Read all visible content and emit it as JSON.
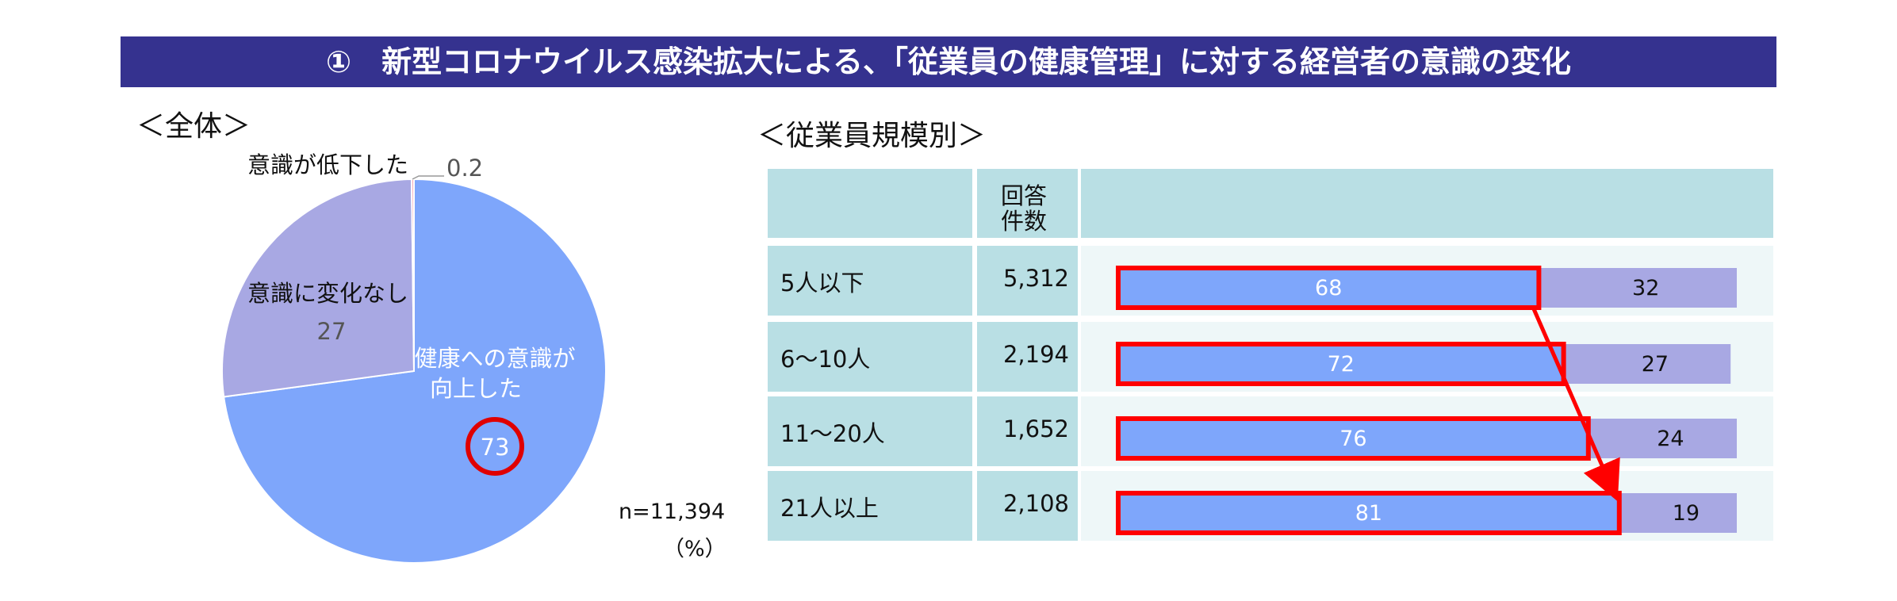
{
  "title": "①　新型コロナウイルス感染拡大による、「従業員の健康管理」に対する経営者の意識の変化",
  "chart_data": [
    {
      "type": "pie",
      "heading": "＜全体＞",
      "slices": [
        {
          "label": "健康への意識が向上した",
          "label_lines": [
            "健康への意識が",
            "向上した"
          ],
          "value": 73,
          "color": "#7ea6fb",
          "circled": true
        },
        {
          "label": "意識に変化なし",
          "value": 27,
          "color": "#a8a8e3"
        },
        {
          "label": "意識が低下した",
          "value": 0.2,
          "color": "#f4a7b4"
        }
      ],
      "n_label": "n=11,394",
      "unit_label": "（%）"
    },
    {
      "type": "bar",
      "stacked": true,
      "orientation": "horizontal",
      "heading": "＜従業員規模別＞",
      "count_header": [
        "回答",
        "件数"
      ],
      "categories": [
        "5人以下",
        "6〜10人",
        "11〜20人",
        "21人以上"
      ],
      "counts": [
        "5,312",
        "2,194",
        "1,652",
        "2,108"
      ],
      "series": [
        {
          "values": [
            68,
            72,
            76,
            81
          ],
          "color": "#7ea6fb"
        },
        {
          "values": [
            32,
            27,
            24,
            19
          ],
          "color": "#a8a8e3"
        }
      ],
      "highlight_color": "#ff0000"
    }
  ]
}
